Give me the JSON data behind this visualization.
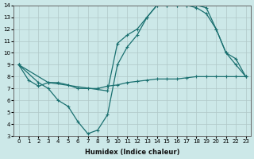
{
  "xlabel": "Humidex (Indice chaleur)",
  "ylabel": "",
  "bg_color": "#cce8e8",
  "line_color": "#1a7070",
  "xlim": [
    -0.5,
    23.5
  ],
  "ylim": [
    3,
    14
  ],
  "xticks": [
    0,
    1,
    2,
    3,
    4,
    5,
    6,
    7,
    8,
    9,
    10,
    11,
    12,
    13,
    14,
    15,
    16,
    17,
    18,
    19,
    20,
    21,
    22,
    23
  ],
  "yticks": [
    3,
    4,
    5,
    6,
    7,
    8,
    9,
    10,
    11,
    12,
    13,
    14
  ],
  "line1_x": [
    0,
    1,
    2,
    3,
    4,
    5,
    6,
    7,
    8,
    9,
    10,
    11,
    12,
    13,
    14,
    15,
    16,
    17,
    18,
    19,
    20,
    21,
    22,
    23
  ],
  "line1_y": [
    9.0,
    7.7,
    7.2,
    7.5,
    7.5,
    7.3,
    7.0,
    7.0,
    7.0,
    7.2,
    7.3,
    7.5,
    7.6,
    7.7,
    7.8,
    7.8,
    7.8,
    7.9,
    8.0,
    8.0,
    8.0,
    8.0,
    8.0,
    8.0
  ],
  "line2_x": [
    0,
    2,
    3,
    4,
    5,
    6,
    7,
    8,
    9,
    10,
    11,
    12,
    13,
    14,
    15,
    16,
    17,
    18,
    19,
    20,
    21,
    22,
    23
  ],
  "line2_y": [
    9.0,
    7.5,
    7.0,
    6.0,
    5.5,
    4.2,
    3.2,
    3.5,
    4.8,
    9.0,
    10.5,
    11.5,
    13.0,
    14.0,
    14.0,
    14.0,
    14.0,
    13.8,
    13.3,
    12.0,
    10.0,
    9.0,
    8.0
  ],
  "line3_x": [
    0,
    3,
    9,
    10,
    11,
    12,
    13,
    14,
    15,
    16,
    17,
    18,
    19,
    20,
    21,
    22,
    23
  ],
  "line3_y": [
    9.0,
    7.5,
    6.8,
    10.8,
    11.5,
    12.0,
    13.0,
    14.0,
    14.0,
    14.0,
    14.0,
    14.0,
    13.8,
    12.0,
    10.0,
    9.5,
    8.0
  ]
}
